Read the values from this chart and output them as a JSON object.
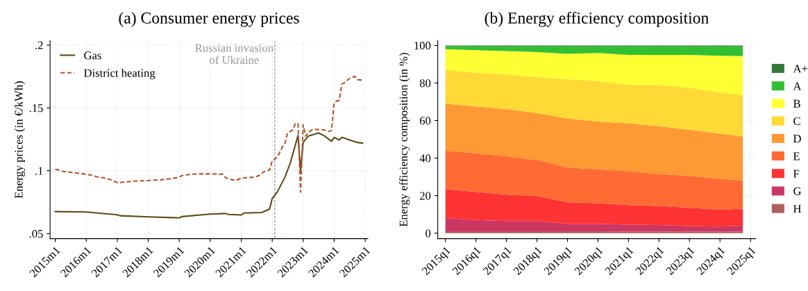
{
  "chart_data": [
    {
      "type": "line",
      "title": "(a) Consumer energy prices",
      "ylabel": "Energy prices (in €/kWh)",
      "xlim": [
        "2014-11",
        "2025-02"
      ],
      "xticks": [
        {
          "value": "2015-01",
          "label": "2015m1"
        },
        {
          "value": "2016-01",
          "label": "2016m1"
        },
        {
          "value": "2017-01",
          "label": "2017m1"
        },
        {
          "value": "2018-01",
          "label": "2018m1"
        },
        {
          "value": "2019-01",
          "label": "2019m1"
        },
        {
          "value": "2020-01",
          "label": "2020m1"
        },
        {
          "value": "2021-01",
          "label": "2021m1"
        },
        {
          "value": "2022-01",
          "label": "2022m1"
        },
        {
          "value": "2023-01",
          "label": "2023m1"
        },
        {
          "value": "2024-01",
          "label": "2024m1"
        },
        {
          "value": "2025-01",
          "label": "2025m1"
        }
      ],
      "ylim": [
        0.046,
        0.2034
      ],
      "yticks": [
        {
          "value": 0.05,
          "label": ".05"
        },
        {
          "value": 0.1,
          "label": ".1"
        },
        {
          "value": 0.15,
          "label": ".15"
        },
        {
          "value": 0.2,
          "label": ".2"
        }
      ],
      "grid": true,
      "legend": "top left",
      "ref_lines": [
        {
          "axis": "x",
          "value": "2022-02",
          "label": "Russian invasion\nof Ukraine",
          "color": "#999999",
          "line_style": "dashed"
        }
      ],
      "series": [
        {
          "name": "Gas",
          "color": "#5c4a1a",
          "line_style": "solid",
          "x": [
            "2015-01",
            "2016-01",
            "2017-01",
            "2017-02",
            "2018-01",
            "2019-01",
            "2019-02",
            "2020-01",
            "2020-07",
            "2020-08",
            "2021-01",
            "2021-02",
            "2021-09",
            "2021-12",
            "2022-01",
            "2022-03",
            "2022-06",
            "2022-08",
            "2022-11",
            "2022-12",
            "2023-01",
            "2023-03",
            "2023-07",
            "2023-09",
            "2023-11",
            "2023-12",
            "2024-01",
            "2024-03",
            "2024-04",
            "2024-07",
            "2024-10",
            "2024-12"
          ],
          "values": [
            0.0675,
            0.0672,
            0.065,
            0.0642,
            0.0633,
            0.0625,
            0.0635,
            0.0655,
            0.066,
            0.0652,
            0.0648,
            0.0663,
            0.0668,
            0.0695,
            0.078,
            0.083,
            0.095,
            0.106,
            0.128,
            0.1,
            0.1225,
            0.1275,
            0.13,
            0.128,
            0.125,
            0.1235,
            0.1265,
            0.1245,
            0.1265,
            0.1245,
            0.1225,
            0.122
          ]
        },
        {
          "name": "District heating",
          "color": "#b5532f",
          "line_style": "dashed",
          "x": [
            "2015-01",
            "2015-02",
            "2015-04",
            "2015-08",
            "2015-11",
            "2016-01",
            "2016-03",
            "2016-05",
            "2016-08",
            "2016-11",
            "2017-01",
            "2017-05",
            "2017-08",
            "2018-01",
            "2018-06",
            "2018-09",
            "2019-01",
            "2019-02",
            "2019-06",
            "2019-09",
            "2020-01",
            "2020-06",
            "2020-07",
            "2020-09",
            "2020-11",
            "2021-01",
            "2021-06",
            "2021-08",
            "2021-10",
            "2021-12",
            "2022-01",
            "2022-03",
            "2022-05",
            "2022-06",
            "2022-07",
            "2022-09",
            "2022-10",
            "2022-11",
            "2022-12",
            "2023-01",
            "2023-02",
            "2023-03",
            "2023-05",
            "2023-09",
            "2023-11",
            "2023-12",
            "2024-01",
            "2024-02",
            "2024-03",
            "2024-04",
            "2024-05",
            "2024-07",
            "2024-09",
            "2024-10",
            "2024-12"
          ],
          "values": [
            0.101,
            0.1008,
            0.0995,
            0.0985,
            0.0978,
            0.0972,
            0.0965,
            0.0952,
            0.0942,
            0.0925,
            0.0905,
            0.0912,
            0.0918,
            0.0922,
            0.0928,
            0.0935,
            0.0948,
            0.0962,
            0.0972,
            0.0975,
            0.0975,
            0.0972,
            0.0945,
            0.093,
            0.0922,
            0.0942,
            0.0948,
            0.0962,
            0.0995,
            0.1005,
            0.108,
            0.1105,
            0.119,
            0.122,
            0.13,
            0.1325,
            0.1375,
            0.1375,
            0.083,
            0.1365,
            0.1275,
            0.1305,
            0.133,
            0.1325,
            0.1312,
            0.132,
            0.154,
            0.1555,
            0.156,
            0.169,
            0.17,
            0.1735,
            0.175,
            0.1725,
            0.172
          ]
        }
      ]
    },
    {
      "type": "area",
      "stacked": true,
      "title": "(b) Energy efficiency composition",
      "ylabel": "Energy efficiency composition (in %)",
      "x": [
        "2015-01",
        "2016-01",
        "2017-01",
        "2018-01",
        "2019-01",
        "2020-01",
        "2021-01",
        "2022-01",
        "2023-01",
        "2024-01",
        "2024-10"
      ],
      "xlim": [
        "2014-10",
        "2025-03"
      ],
      "xticks": [
        {
          "value": "2015-01",
          "label": "2015q1"
        },
        {
          "value": "2016-01",
          "label": "2016q1"
        },
        {
          "value": "2017-01",
          "label": "2017q1"
        },
        {
          "value": "2018-01",
          "label": "2018q1"
        },
        {
          "value": "2019-01",
          "label": "2019q1"
        },
        {
          "value": "2020-01",
          "label": "2020q1"
        },
        {
          "value": "2021-01",
          "label": "2021q1"
        },
        {
          "value": "2022-01",
          "label": "2022q1"
        },
        {
          "value": "2023-01",
          "label": "2023q1"
        },
        {
          "value": "2024-01",
          "label": "2024q1"
        },
        {
          "value": "2025-01",
          "label": "2025q1"
        }
      ],
      "ylim": [
        -2.9,
        102.5
      ],
      "yticks": [
        0,
        20,
        40,
        60,
        80,
        100
      ],
      "grid": true,
      "legend": "right",
      "series": [
        {
          "name": "H",
          "color": "#b06060",
          "values": [
            1,
            1,
            1,
            1,
            1,
            1,
            0.8,
            0.8,
            0.8,
            0.8,
            0.8
          ]
        },
        {
          "name": "G",
          "color": "#cc3663",
          "values": [
            7,
            6,
            5.5,
            5.5,
            4,
            4,
            3.7,
            3.5,
            3,
            2.7,
            3.2
          ]
        },
        {
          "name": "F",
          "color": "#ff3333",
          "values": [
            15.5,
            15,
            14,
            13.3,
            11.5,
            11,
            10.5,
            10.2,
            9.7,
            9,
            9
          ]
        },
        {
          "name": "E",
          "color": "#ff6b33",
          "values": [
            20.5,
            20.5,
            20.5,
            19.2,
            18.5,
            18,
            18,
            17,
            17,
            16.5,
            15
          ]
        },
        {
          "name": "D",
          "color": "#ff9933",
          "values": [
            25,
            25,
            25,
            25,
            26,
            25.5,
            25.5,
            25.5,
            24.5,
            24,
            23.5
          ]
        },
        {
          "name": "C",
          "color": "#ffd935",
          "values": [
            18,
            18,
            18.5,
            19,
            21,
            21.5,
            20.5,
            22,
            22.5,
            22,
            22
          ]
        },
        {
          "name": "B",
          "color": "#ffff33",
          "values": [
            11,
            12,
            12.5,
            13.5,
            13.5,
            15,
            16,
            16,
            17.5,
            19.5,
            20.8
          ]
        },
        {
          "name": "A",
          "color": "#33bf33",
          "values": [
            1.7,
            2,
            2.5,
            3,
            4,
            3.5,
            4.5,
            4.5,
            4.5,
            5,
            5.2
          ]
        },
        {
          "name": "A+",
          "color": "#357a38",
          "values": [
            0.3,
            0.5,
            0.5,
            0.5,
            0.5,
            0.5,
            0.5,
            0.5,
            0.5,
            0.5,
            0.5
          ]
        }
      ]
    }
  ]
}
